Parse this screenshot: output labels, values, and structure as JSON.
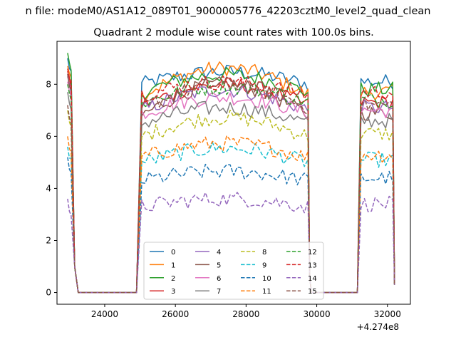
{
  "figure": {
    "suptitle": "n file: modeM0/AS1A12_089T01_9000005776_42203cztM0_level2_quad_clean",
    "title": "Quadrant 2 module wise count rates with 100.0s bins."
  },
  "chart_data": {
    "type": "line",
    "xlim": [
      22650,
      32650
    ],
    "ylim": [
      -0.45,
      9.65
    ],
    "xticks": [
      24000,
      26000,
      28000,
      30000,
      32000
    ],
    "xtick_labels": [
      "24000",
      "26000",
      "28000",
      "30000",
      "32000"
    ],
    "x_offset_label": "+4.274e8",
    "yticks": [
      0,
      2,
      4,
      6,
      8
    ],
    "ytick_labels": [
      "0",
      "2",
      "4",
      "6",
      "8"
    ],
    "grid": false,
    "legend": {
      "placement": "bottom-center",
      "columns": 4
    },
    "time_segments": {
      "orbit1": {
        "start": 22950,
        "ramp_down": [
          23150,
          23250
        ],
        "zero_until": 24900,
        "ramp_up": [
          24900,
          25050
        ],
        "end": 29750
      },
      "orbit2": {
        "start": 31200,
        "ramp_up": [
          31150,
          31250
        ],
        "end": 32200
      }
    },
    "series": [
      {
        "name": "0",
        "style": "solid",
        "color": "#1f77b4",
        "level": 8.0,
        "start_value": 9.0,
        "peak": 8.8
      },
      {
        "name": "1",
        "style": "solid",
        "color": "#ff7f0e",
        "level": 7.6,
        "start_value": 8.7,
        "peak": 9.3
      },
      {
        "name": "2",
        "style": "solid",
        "color": "#2ca02c",
        "level": 7.7,
        "start_value": 9.2,
        "peak": 8.8
      },
      {
        "name": "3",
        "style": "solid",
        "color": "#d62728",
        "level": 7.2,
        "start_value": 8.5,
        "peak": 8.5
      },
      {
        "name": "4",
        "style": "solid",
        "color": "#9467bd",
        "level": 7.0,
        "start_value": 8.3,
        "peak": 8.3
      },
      {
        "name": "5",
        "style": "solid",
        "color": "#8c564b",
        "level": 6.8,
        "start_value": 8.4,
        "peak": 8.8
      },
      {
        "name": "6",
        "style": "solid",
        "color": "#e377c2",
        "level": 6.9,
        "start_value": 8.1,
        "peak": 7.9
      },
      {
        "name": "7",
        "style": "solid",
        "color": "#7f7f7f",
        "level": 6.5,
        "start_value": 7.7,
        "peak": 7.5
      },
      {
        "name": "8",
        "style": "dashed",
        "color": "#bcbd22",
        "level": 6.0,
        "start_value": 7.0,
        "peak": 7.2
      },
      {
        "name": "9",
        "style": "dashed",
        "color": "#17becf",
        "level": 5.0,
        "start_value": 5.6,
        "peak": 5.9
      },
      {
        "name": "10",
        "style": "dashed",
        "color": "#1f77b4",
        "level": 4.3,
        "start_value": 5.2,
        "peak": 4.9
      },
      {
        "name": "11",
        "style": "dashed",
        "color": "#ff7f0e",
        "level": 5.2,
        "start_value": 6.0,
        "peak": 6.1
      },
      {
        "name": "12",
        "style": "dashed",
        "color": "#2ca02c",
        "level": 7.3,
        "start_value": 8.0,
        "peak": 8.3
      },
      {
        "name": "13",
        "style": "dashed",
        "color": "#d62728",
        "level": 7.6,
        "start_value": 8.6,
        "peak": 8.4
      },
      {
        "name": "14",
        "style": "dashed",
        "color": "#9467bd",
        "level": 3.3,
        "start_value": 3.6,
        "peak": 3.8
      },
      {
        "name": "15",
        "style": "dashed",
        "color": "#8c564b",
        "level": 7.1,
        "start_value": 7.2,
        "peak": 8.6
      }
    ]
  }
}
